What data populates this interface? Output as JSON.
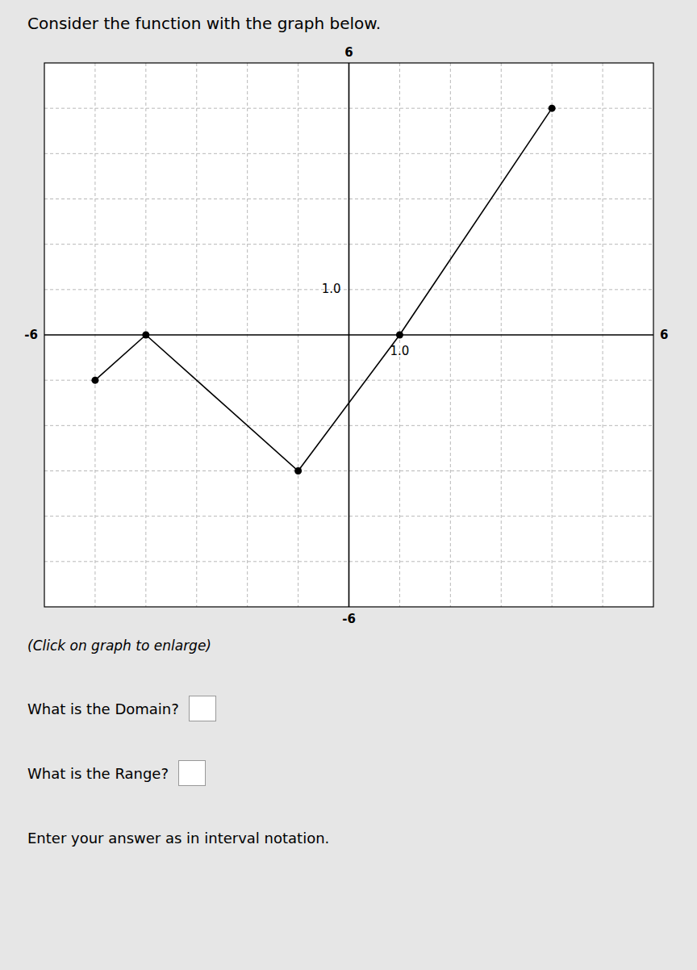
{
  "chart_data": {
    "type": "line",
    "title": "Consider the function with the graph below.",
    "subtitle": "(Click on graph to enlarge)",
    "annotations": [
      "What is the Domain?",
      "What is the Range?",
      "Enter your answer as in interval notation."
    ],
    "x": [
      -5,
      -4,
      -1,
      1,
      4
    ],
    "values": [
      -1,
      0,
      -3,
      0,
      5
    ],
    "color": "#000000",
    "marker": "circle",
    "xlim": [
      -6,
      6
    ],
    "ylim": [
      -6,
      6
    ],
    "xticks": [
      -6,
      {
        "value": 1,
        "label": "1.0"
      },
      6
    ],
    "yticks": [
      -6,
      {
        "value": 1,
        "label": "1.0"
      },
      6
    ],
    "grid": true
  }
}
